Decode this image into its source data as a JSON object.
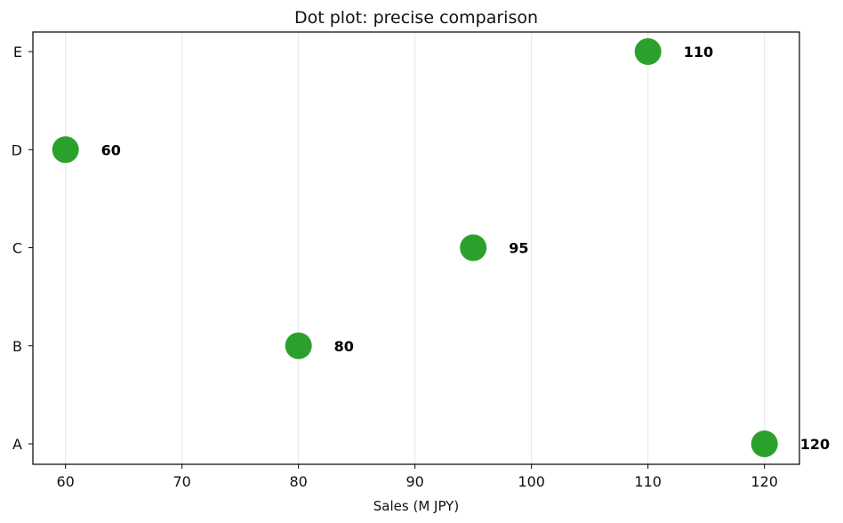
{
  "chart_data": {
    "type": "scatter",
    "title": "Dot plot: precise comparison",
    "xlabel": "Sales (M JPY)",
    "ylabel": "",
    "categories": [
      "A",
      "B",
      "C",
      "D",
      "E"
    ],
    "values": [
      120,
      80,
      95,
      60,
      110
    ],
    "data_labels": [
      "120",
      "80",
      "95",
      "60",
      "110"
    ],
    "xlim": [
      57.2,
      123
    ],
    "xticks": [
      60,
      70,
      80,
      90,
      100,
      110,
      120
    ],
    "xtick_labels": [
      "60",
      "70",
      "80",
      "90",
      "100",
      "110",
      "120"
    ],
    "grid": "vertical",
    "colors": {
      "marker": "#2ca02c",
      "grid": "#e6e6e6",
      "axis": "#000000"
    }
  }
}
